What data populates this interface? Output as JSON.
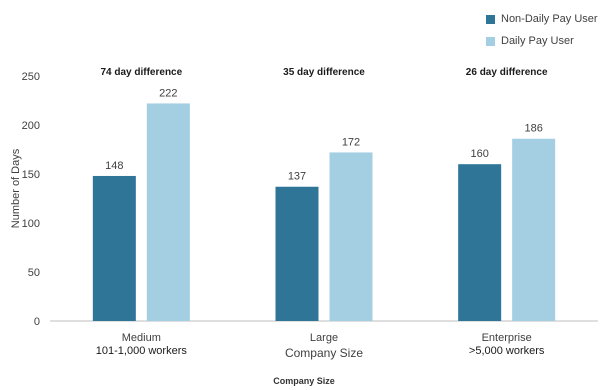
{
  "legend": {
    "nondaily_label": "Non-Daily Pay User",
    "daily_label": "Daily Pay User"
  },
  "bottom_title": "Company Size",
  "colors": {
    "nondaily": "#2e7597",
    "daily": "#a4cfe3",
    "axis": "#bfbfbf",
    "text": "#404040"
  },
  "chart_data": {
    "type": "bar",
    "categories": [
      "Medium",
      "Large",
      "Enterprise"
    ],
    "category_sublabels": [
      "101-1,000 workers",
      "",
      ">5,000 workers"
    ],
    "annotations": [
      "74 day difference",
      "35 day difference",
      "26 day difference"
    ],
    "series": [
      {
        "name": "Non-Daily Pay User",
        "values": [
          148,
          137,
          160
        ]
      },
      {
        "name": "Daily Pay User",
        "values": [
          222,
          172,
          186
        ]
      }
    ],
    "xlabel": "Company Size",
    "ylabel": "Number of Days",
    "ylim": [
      0,
      250
    ],
    "yticks": [
      0,
      50,
      100,
      150,
      200,
      250
    ],
    "grid": false,
    "legend_position": "top-right"
  }
}
